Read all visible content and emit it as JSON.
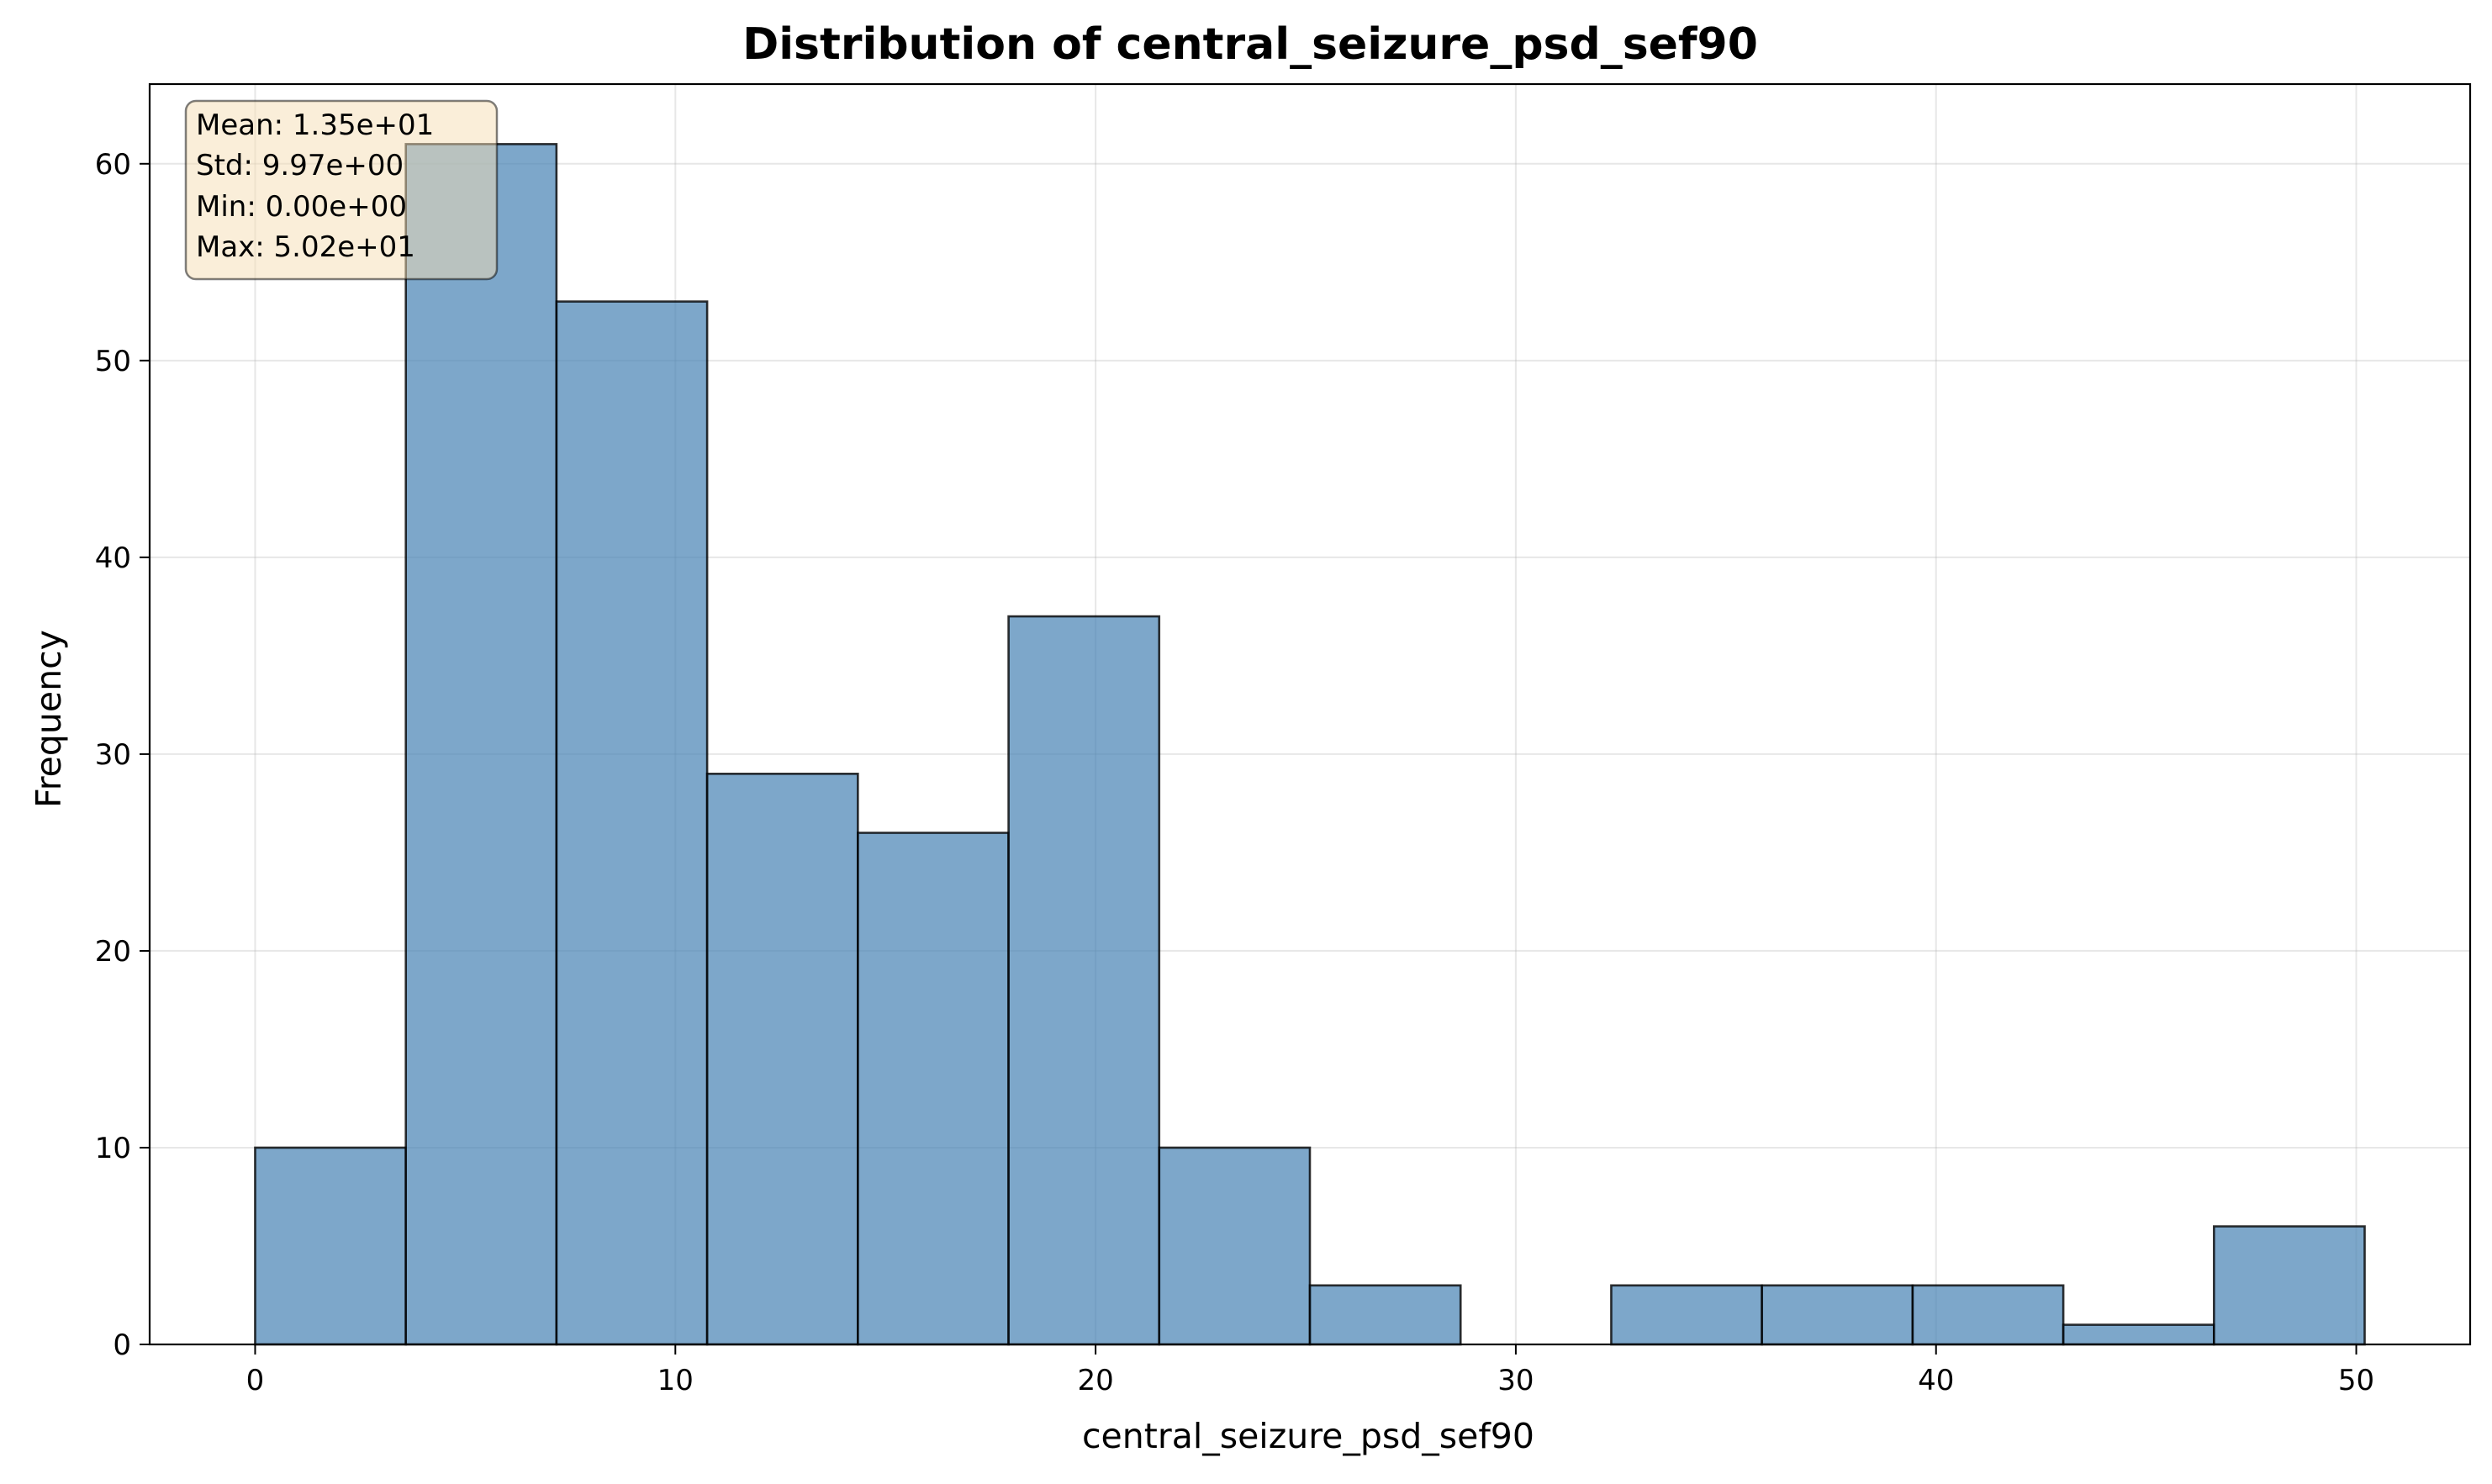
{
  "chart_data": {
    "type": "bar",
    "title": "Distribution of central_seizure_psd_sef90",
    "xlabel": "central_seizure_psd_sef90",
    "ylabel": "Frequency",
    "bin_edges": [
      0,
      3.586,
      7.171,
      10.757,
      14.343,
      17.929,
      21.514,
      25.1,
      28.686,
      32.271,
      35.857,
      39.443,
      43.029,
      46.614,
      50.2
    ],
    "values": [
      10,
      61,
      53,
      29,
      26,
      37,
      10,
      3,
      0,
      3,
      3,
      3,
      1,
      6
    ],
    "xlim": [
      -2.51,
      52.71
    ],
    "ylim": [
      0,
      64.05
    ],
    "xticks": [
      0,
      10,
      20,
      30,
      40,
      50
    ],
    "yticks": [
      0,
      10,
      20,
      30,
      40,
      50,
      60
    ],
    "grid": true,
    "bar_color": "#4682b4",
    "bar_opacity": 0.7,
    "edge_color": "#000000",
    "stats_box": {
      "lines": [
        "Mean: 1.35e+01",
        "Std: 9.97e+00",
        "Min: 0.00e+00",
        "Max: 5.02e+01"
      ],
      "placement": "top-left",
      "face_color": "#f5deb3",
      "face_opacity": 0.5
    }
  }
}
